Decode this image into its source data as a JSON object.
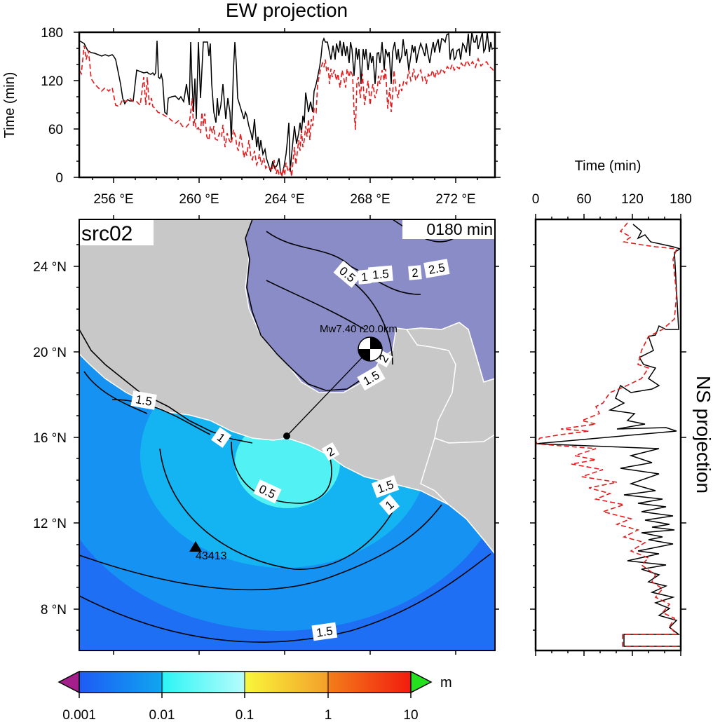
{
  "map": {
    "panel_label": "src02",
    "time_label": "0180 min",
    "lat_ticks": [
      "8 °N",
      "12 °N",
      "16 °N",
      "20 °N",
      "24 °N"
    ],
    "lon_ticks": [
      "256 °E",
      "260 °E",
      "264 °E",
      "268 °E",
      "272 °E"
    ],
    "source_label": "Mw7.40 r20.0km",
    "station_label": "43413",
    "contour_labels": {
      "c15_west": "1.5",
      "c1_coast": "1",
      "c05": "0.5",
      "c15_east": "1.5",
      "c1_east": "1",
      "c15_south": "1.5",
      "c2_coast": "2",
      "gulf_05": "0.5",
      "gulf_1": "1",
      "gulf_15": "1.5",
      "gulf_2": "2",
      "gulf_25": "2.5",
      "bay_15": "1.5",
      "bay_2": "2"
    },
    "colors": {
      "land": "#c8c8c8",
      "gulf_water": "#8a8cc8",
      "ocean_deep": "#1f6ff5",
      "ocean_mid": "#14a8f2",
      "ocean_near": "#38d4f4",
      "ocean_cyan": "#50f2f4"
    }
  },
  "ew_panel": {
    "title": "EW projection",
    "ylabel": "Time (min)",
    "yticks": [
      "0",
      "60",
      "120",
      "180"
    ]
  },
  "ns_panel": {
    "title": "NS projection",
    "xlabel": "Time (min)",
    "xticks": [
      "0",
      "60",
      "120",
      "180"
    ]
  },
  "colorbar": {
    "unit": "m",
    "ticks": [
      "0.001",
      "0.01",
      "0.1",
      "1",
      "10"
    ],
    "scale": "log",
    "colors": [
      "#1e5bf5",
      "#10a4f0",
      "#2ef5f5",
      "#b5fcfc",
      "#f9f53a",
      "#f3a12b",
      "#f21c0e",
      "#a51f8c",
      "#25e01e"
    ]
  }
}
